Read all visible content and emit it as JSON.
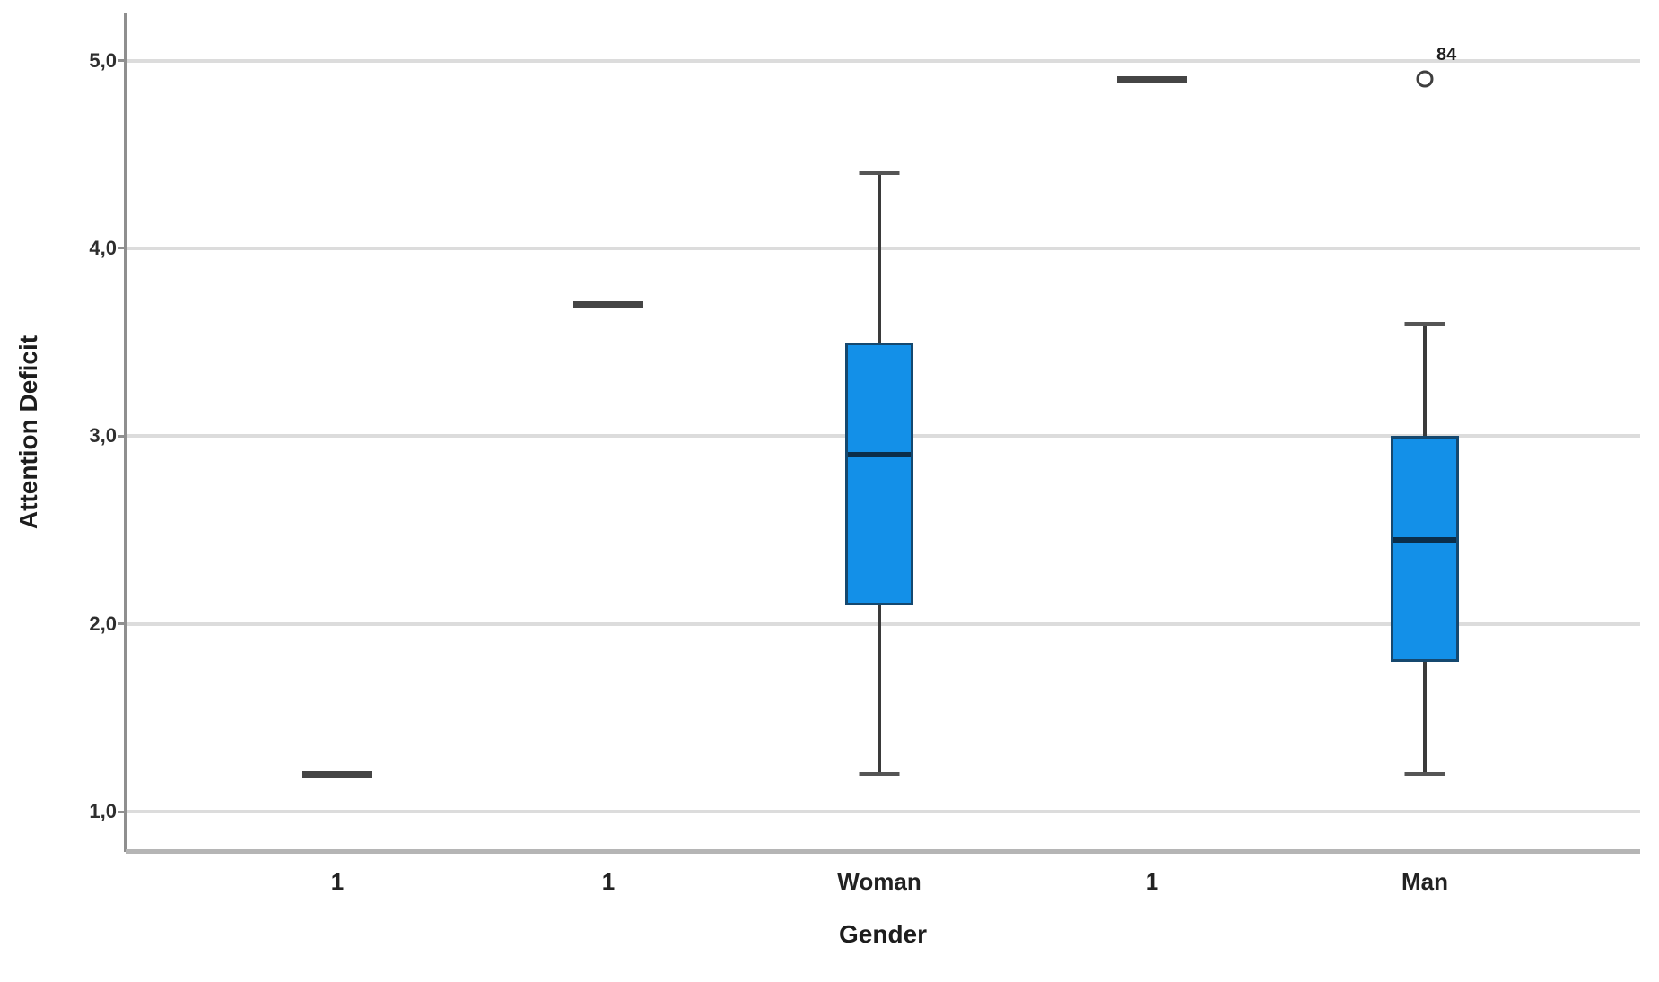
{
  "chart_data": {
    "type": "boxplot",
    "title": "",
    "xlabel": "Gender",
    "ylabel": "Attention Deficit",
    "decimal_separator": ",",
    "grid": true,
    "legend": "none",
    "ylim": [
      0.8,
      5.25
    ],
    "y_ticks": [
      {
        "value": 5.0,
        "label": "5,0"
      },
      {
        "value": 4.0,
        "label": "4,0"
      },
      {
        "value": 3.0,
        "label": "3,0"
      },
      {
        "value": 2.0,
        "label": "2,0"
      },
      {
        "value": 1.0,
        "label": "1,0"
      }
    ],
    "categories": [
      "1",
      "1",
      "Woman",
      "1",
      "Man"
    ],
    "series": [
      {
        "category": "1",
        "kind": "single-value",
        "value": 1.2
      },
      {
        "category": "1",
        "kind": "single-value",
        "value": 3.7
      },
      {
        "category": "Woman",
        "kind": "box",
        "whisker_low": 1.2,
        "q1": 2.1,
        "median": 2.9,
        "q3": 3.5,
        "whisker_high": 4.4,
        "outliers": []
      },
      {
        "category": "1",
        "kind": "single-value",
        "value": 4.9
      },
      {
        "category": "Man",
        "kind": "box",
        "whisker_low": 1.2,
        "q1": 1.8,
        "median": 2.45,
        "q3": 3.0,
        "whisker_high": 3.6,
        "outliers": [
          {
            "value": 4.9,
            "label": "84"
          }
        ]
      }
    ],
    "colors": {
      "box_fill": "#1390e8",
      "box_border": "#15486f",
      "median": "#0b2e4a",
      "whisker": "#3a3a3a",
      "gridline": "#dcdcdc",
      "axis_y": "#8f8f8f",
      "axis_x": "#b5b5b5",
      "text": "#1d1d1d"
    }
  }
}
